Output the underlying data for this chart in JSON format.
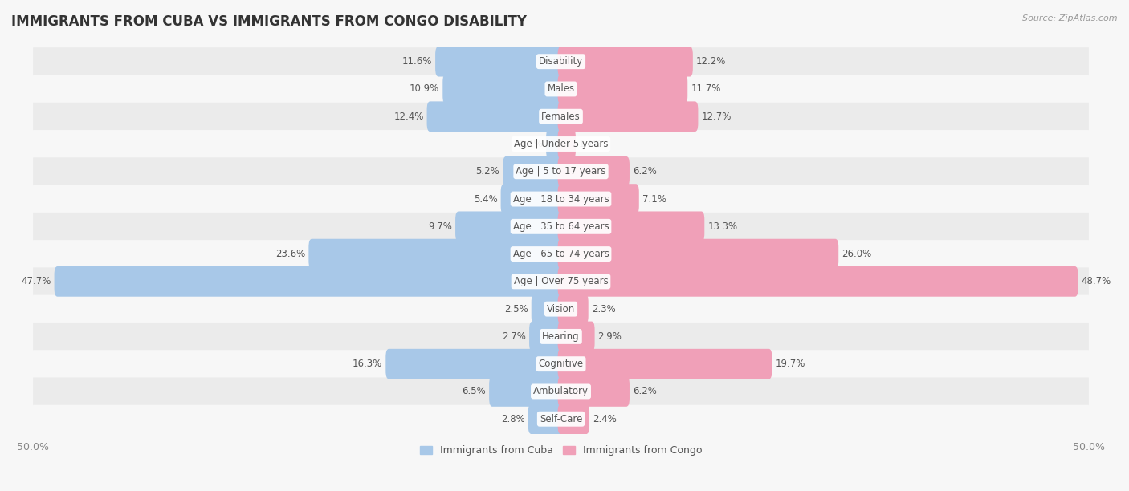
{
  "title": "IMMIGRANTS FROM CUBA VS IMMIGRANTS FROM CONGO DISABILITY",
  "source": "Source: ZipAtlas.com",
  "categories": [
    "Disability",
    "Males",
    "Females",
    "Age | Under 5 years",
    "Age | 5 to 17 years",
    "Age | 18 to 34 years",
    "Age | 35 to 64 years",
    "Age | 65 to 74 years",
    "Age | Over 75 years",
    "Vision",
    "Hearing",
    "Cognitive",
    "Ambulatory",
    "Self-Care"
  ],
  "cuba_values": [
    11.6,
    10.9,
    12.4,
    1.1,
    5.2,
    5.4,
    9.7,
    23.6,
    47.7,
    2.5,
    2.7,
    16.3,
    6.5,
    2.8
  ],
  "congo_values": [
    12.2,
    11.7,
    12.7,
    1.1,
    6.2,
    7.1,
    13.3,
    26.0,
    48.7,
    2.3,
    2.9,
    19.7,
    6.2,
    2.4
  ],
  "cuba_color": "#a8c8e8",
  "congo_color": "#f0a0b8",
  "row_colors_alt": [
    "#ebebeb",
    "#f7f7f7"
  ],
  "fig_bg": "#f7f7f7",
  "max_value": 50.0,
  "legend_labels": [
    "Immigrants from Cuba",
    "Immigrants from Congo"
  ],
  "title_fontsize": 12,
  "label_fontsize": 8.5,
  "value_fontsize": 8.5,
  "bar_height": 0.5
}
